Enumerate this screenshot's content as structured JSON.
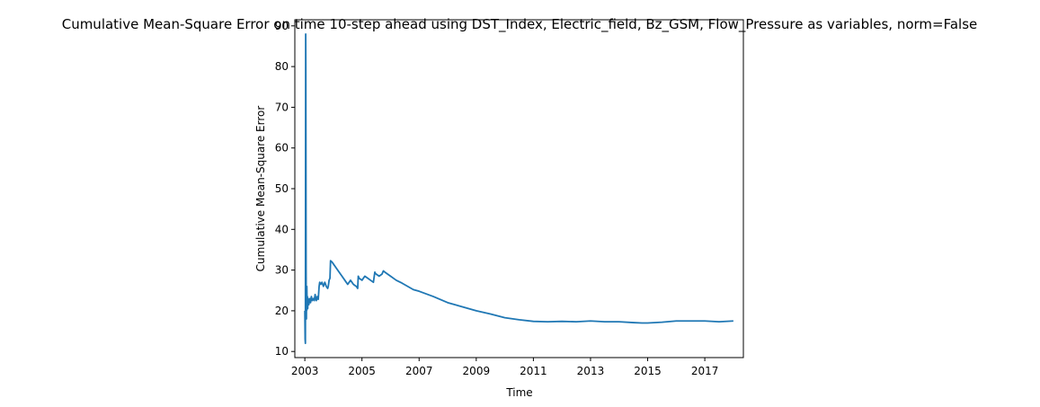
{
  "chart_data": {
    "type": "line",
    "title": "Cumulative Mean-Square Error on time 10-step ahead using DST_Index, Electric_field, Bz_GSM, Flow_Pressure as variables, norm=False",
    "xlabel": "Time",
    "ylabel": "Cumulative Mean-Square Error",
    "xlim": [
      2002.65,
      2018.35
    ],
    "ylim": [
      8.5,
      91.5
    ],
    "x_ticks": [
      2003,
      2005,
      2007,
      2009,
      2011,
      2013,
      2015,
      2017
    ],
    "x_tick_labels": [
      "2003",
      "2005",
      "2007",
      "2009",
      "2011",
      "2013",
      "2015",
      "2017"
    ],
    "y_ticks": [
      10,
      20,
      30,
      40,
      50,
      60,
      70,
      80,
      90
    ],
    "y_tick_labels": [
      "10",
      "20",
      "30",
      "40",
      "50",
      "60",
      "70",
      "80",
      "90"
    ],
    "grid": false,
    "line_color": "#1f77b4",
    "series": [
      {
        "x": [
          2003.0,
          2003.01,
          2003.02,
          2003.03,
          2003.035,
          2003.04,
          2003.045,
          2003.05,
          2003.055,
          2003.06,
          2003.065,
          2003.07,
          2003.08,
          2003.09,
          2003.1,
          2003.11,
          2003.12,
          2003.14,
          2003.16,
          2003.18,
          2003.2,
          2003.23,
          2003.26,
          2003.3,
          2003.33,
          2003.36,
          2003.4,
          2003.44,
          2003.47,
          2003.5,
          2003.52,
          2003.56,
          2003.6,
          2003.65,
          2003.7,
          2003.75,
          2003.8,
          2003.82,
          2003.85,
          2003.88,
          2003.9,
          2003.95,
          2004.0,
          2004.1,
          2004.2,
          2004.3,
          2004.4,
          2004.5,
          2004.6,
          2004.7,
          2004.8,
          2004.85,
          2004.87,
          2004.9,
          2005.0,
          2005.1,
          2005.2,
          2005.3,
          2005.4,
          2005.45,
          2005.47,
          2005.5,
          2005.6,
          2005.7,
          2005.75,
          2005.8,
          2006.0,
          2006.2,
          2006.4,
          2006.6,
          2006.8,
          2007.0,
          2007.5,
          2008.0,
          2008.5,
          2009.0,
          2009.5,
          2010.0,
          2010.5,
          2011.0,
          2011.5,
          2012.0,
          2012.5,
          2013.0,
          2013.5,
          2014.0,
          2014.5,
          2014.8,
          2015.0,
          2015.5,
          2016.0,
          2016.5,
          2017.0,
          2017.5,
          2018.0
        ],
        "y": [
          20.0,
          13.0,
          12.0,
          88.0,
          80.0,
          55.0,
          30.0,
          22.0,
          18.0,
          25.5,
          20.0,
          26.0,
          21.0,
          23.5,
          20.5,
          22.0,
          23.0,
          21.5,
          22.5,
          23.0,
          22.0,
          23.5,
          22.5,
          23.0,
          22.5,
          24.0,
          22.5,
          23.5,
          22.8,
          26.0,
          27.0,
          26.5,
          27.0,
          26.0,
          27.0,
          26.0,
          25.5,
          26.0,
          27.5,
          28.0,
          32.3,
          32.0,
          31.5,
          30.5,
          29.5,
          28.5,
          27.5,
          26.5,
          27.5,
          26.5,
          26.0,
          25.5,
          28.5,
          28.0,
          27.5,
          28.5,
          28.0,
          27.5,
          27.0,
          29.5,
          29.2,
          29.0,
          28.5,
          29.0,
          29.8,
          29.5,
          28.5,
          27.5,
          26.8,
          26.0,
          25.2,
          24.8,
          23.5,
          22.0,
          21.0,
          20.0,
          19.2,
          18.3,
          17.8,
          17.4,
          17.3,
          17.4,
          17.3,
          17.5,
          17.3,
          17.3,
          17.1,
          17.0,
          17.0,
          17.2,
          17.5,
          17.5,
          17.5,
          17.3,
          17.5
        ]
      }
    ]
  }
}
